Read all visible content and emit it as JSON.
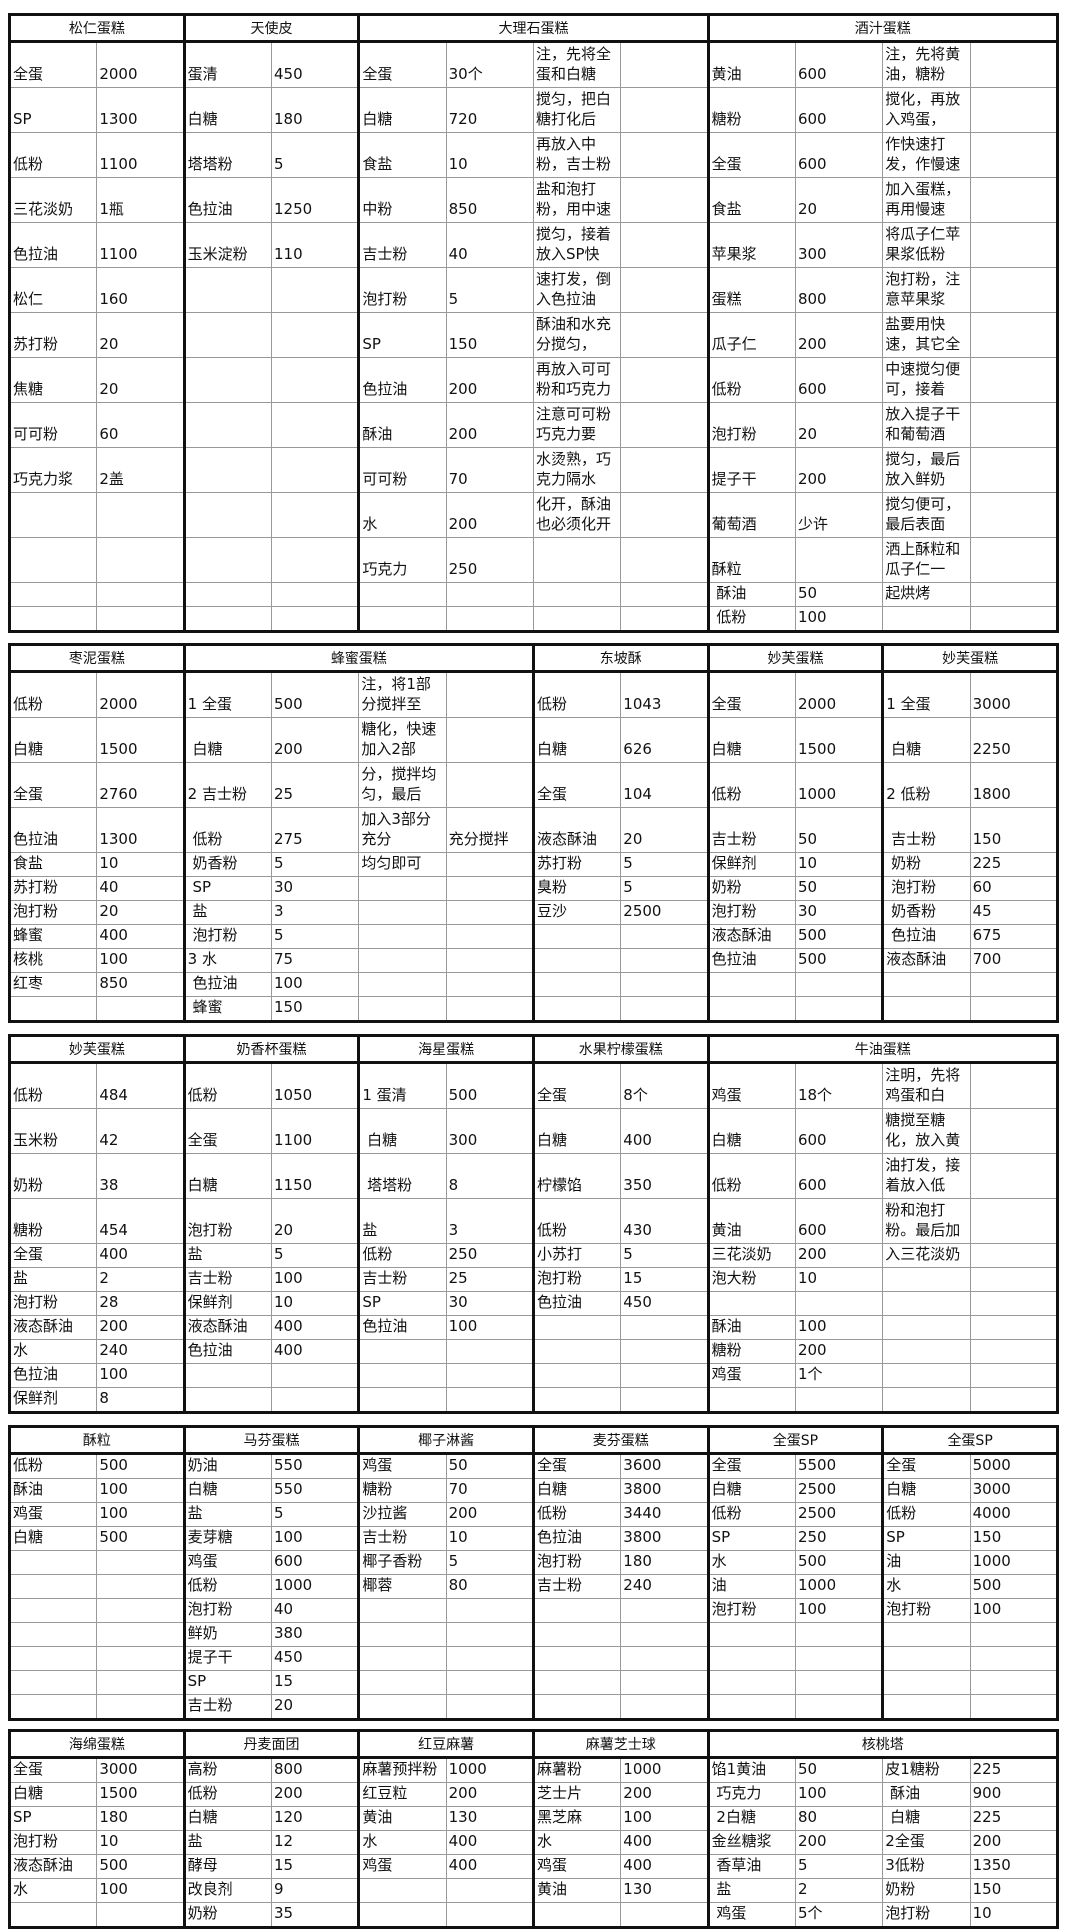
{
  "tables": [
    {
      "headers": [
        {
          "title": "松仁蛋糕",
          "span": 2
        },
        {
          "title": "天使皮",
          "span": 2
        },
        {
          "title": "大理石蛋糕",
          "span": 4
        },
        {
          "title": "酒汁蛋糕",
          "span": 4
        }
      ],
      "rows": [
        [
          "全蛋",
          "2000",
          "蛋清",
          "450",
          "全蛋",
          "30个",
          "注，先将全蛋和白糖",
          "",
          "黄油",
          "600",
          "注，先将黄油，糖粉",
          ""
        ],
        [
          "SP",
          "1300",
          "白糖",
          "180",
          "白糖",
          "720",
          "搅匀，把白糖打化后",
          "",
          "糖粉",
          "600",
          "搅化，再放入鸡蛋，",
          ""
        ],
        [
          "低粉",
          "1100",
          "塔塔粉",
          "5",
          "食盐",
          "10",
          "再放入中粉，吉士粉",
          "",
          "全蛋",
          "600",
          "作快速打发，作慢速",
          ""
        ],
        [
          "三花淡奶",
          "1瓶",
          "色拉油",
          "1250",
          "中粉",
          "850",
          "盐和泡打粉，用中速",
          "",
          "食盐",
          "20",
          "加入蛋糕，再用慢速",
          ""
        ],
        [
          "色拉油",
          "1100",
          "玉米淀粉",
          "110",
          "吉士粉",
          "40",
          "搅匀，接着放入SP快",
          "",
          "苹果浆",
          "300",
          "将瓜子仁苹果浆低粉",
          ""
        ],
        [
          "松仁",
          "160",
          "",
          "",
          "泡打粉",
          "5",
          "速打发，倒入色拉油",
          "",
          "蛋糕",
          "800",
          "泡打粉，注意苹果浆",
          ""
        ],
        [
          "苏打粉",
          "20",
          "",
          "",
          "SP",
          "150",
          "酥油和水充分搅匀，",
          "",
          "瓜子仁",
          "200",
          "盐要用快速，其它全",
          ""
        ],
        [
          "焦糖",
          "20",
          "",
          "",
          "色拉油",
          "200",
          "再放入可可粉和巧克力",
          "",
          "低粉",
          "600",
          "中速搅匀便可，接着",
          ""
        ],
        [
          "可可粉",
          "60",
          "",
          "",
          "酥油",
          "200",
          "注意可可粉巧克力要",
          "",
          "泡打粉",
          "20",
          "放入提子干和葡萄酒",
          ""
        ],
        [
          "巧克力浆",
          "2盖",
          "",
          "",
          "可可粉",
          "70",
          "水烫熟，巧克力隔水",
          "",
          "提子干",
          "200",
          "搅匀，最后放入鲜奶",
          ""
        ],
        [
          "",
          "",
          "",
          "",
          "水",
          "200",
          "化开，酥油也必须化开",
          "",
          "葡萄酒",
          "少许",
          "搅匀便可，最后表面",
          ""
        ],
        [
          "",
          "",
          "",
          "",
          "巧克力",
          "250",
          "",
          "",
          "酥粒",
          "",
          "洒上酥粒和瓜子仁一",
          ""
        ],
        [
          "",
          "",
          "",
          "",
          "",
          "",
          "",
          "",
          " 酥油",
          "50",
          "起烘烤",
          ""
        ],
        [
          "",
          "",
          "",
          "",
          "",
          "",
          "",
          "",
          " 低粉",
          "100",
          "",
          ""
        ]
      ]
    },
    {
      "headers": [
        {
          "title": "枣泥蛋糕",
          "span": 2
        },
        {
          "title": "蜂蜜蛋糕",
          "span": 4
        },
        {
          "title": "东坡酥",
          "span": 2
        },
        {
          "title": "妙芙蛋糕",
          "span": 2
        },
        {
          "title": "妙芙蛋糕",
          "span": 2
        }
      ],
      "rows": [
        [
          "低粉",
          "2000",
          "1 全蛋",
          "500",
          "注，将1部分搅拌至",
          "",
          "低粉",
          "1043",
          "全蛋",
          "2000",
          "1 全蛋",
          "3000"
        ],
        [
          "白糖",
          "1500",
          " 白糖",
          "200",
          "糖化，快速加入2部",
          "",
          "白糖",
          "626",
          "白糖",
          "1500",
          " 白糖",
          "2250"
        ],
        [
          "全蛋",
          "2760",
          "2 吉士粉",
          "25",
          "分，搅拌均匀，最后",
          "",
          "全蛋",
          "104",
          "低粉",
          "1000",
          "2 低粉",
          "1800"
        ],
        [
          "色拉油",
          "1300",
          " 低粉",
          "275",
          "加入3部分充分",
          "充分搅拌",
          "液态酥油",
          "20",
          "吉士粉",
          "50",
          " 吉士粉",
          "150"
        ],
        [
          "食盐",
          "10",
          " 奶香粉",
          "5",
          "均匀即可",
          "",
          "苏打粉",
          "5",
          "保鲜剂",
          "10",
          " 奶粉",
          "225"
        ],
        [
          "苏打粉",
          "40",
          " SP",
          "30",
          "",
          "",
          "臭粉",
          "5",
          "奶粉",
          "50",
          " 泡打粉",
          "60"
        ],
        [
          "泡打粉",
          "20",
          " 盐",
          "3",
          "",
          "",
          "豆沙",
          "2500",
          "泡打粉",
          "30",
          " 奶香粉",
          "45"
        ],
        [
          "蜂蜜",
          "400",
          " 泡打粉",
          "5",
          "",
          "",
          "",
          "",
          "液态酥油",
          "500",
          " 色拉油",
          "675"
        ],
        [
          "核桃",
          "100",
          "3 水",
          "75",
          "",
          "",
          "",
          "",
          "色拉油",
          "500",
          "液态酥油",
          "700"
        ],
        [
          "红枣",
          "850",
          " 色拉油",
          "100",
          "",
          "",
          "",
          "",
          "",
          "",
          "",
          ""
        ],
        [
          "",
          "",
          " 蜂蜜",
          "150",
          "",
          "",
          "",
          "",
          "",
          "",
          "",
          ""
        ]
      ]
    },
    {
      "headers": [
        {
          "title": "妙芙蛋糕",
          "span": 2
        },
        {
          "title": "奶香杯蛋糕",
          "span": 2
        },
        {
          "title": "海星蛋糕",
          "span": 2
        },
        {
          "title": "水果柠檬蛋糕",
          "span": 2
        },
        {
          "title": "牛油蛋糕",
          "span": 4
        }
      ],
      "rows": [
        [
          "低粉",
          "484",
          "低粉",
          "1050",
          "1 蛋清",
          "500",
          "全蛋",
          "8个",
          "鸡蛋",
          "18个",
          "注明，先将鸡蛋和白",
          ""
        ],
        [
          "玉米粉",
          "42",
          "全蛋",
          "1100",
          " 白糖",
          "300",
          "白糖",
          "400",
          "白糖",
          "600",
          "糖搅至糖化，放入黄",
          ""
        ],
        [
          "奶粉",
          "38",
          "白糖",
          "1150",
          " 塔塔粉",
          "8",
          "柠檬馅",
          "350",
          "低粉",
          "600",
          "油打发，接着放入低",
          ""
        ],
        [
          "糖粉",
          "454",
          "泡打粉",
          "20",
          "盐",
          "3",
          "低粉",
          "430",
          "黄油",
          "600",
          "粉和泡打粉。最后加",
          ""
        ],
        [
          "全蛋",
          "400",
          "盐",
          "5",
          "低粉",
          "250",
          "小苏打",
          "5",
          "三花淡奶",
          "200",
          "入三花淡奶",
          ""
        ],
        [
          "盐",
          "2",
          "吉士粉",
          "100",
          "吉士粉",
          "25",
          "泡打粉",
          "15",
          "泡大粉",
          "10",
          "",
          ""
        ],
        [
          "泡打粉",
          "28",
          "保鲜剂",
          "10",
          "SP",
          "30",
          "色拉油",
          "450",
          "",
          "",
          "",
          ""
        ],
        [
          "液态酥油",
          "200",
          "液态酥油",
          "400",
          "色拉油",
          "100",
          "",
          "",
          "酥油",
          "100",
          "",
          ""
        ],
        [
          "水",
          "240",
          "色拉油",
          "400",
          "",
          "",
          "",
          "",
          "糖粉",
          "200",
          "",
          ""
        ],
        [
          "色拉油",
          "100",
          "",
          "",
          "",
          "",
          "",
          "",
          "鸡蛋",
          "1个",
          "",
          ""
        ],
        [
          "保鲜剂",
          "8",
          "",
          "",
          "",
          "",
          "",
          "",
          "",
          "",
          "",
          ""
        ]
      ]
    },
    {
      "headers": [
        {
          "title": "酥粒",
          "span": 2
        },
        {
          "title": "马芬蛋糕",
          "span": 2
        },
        {
          "title": "椰子淋酱",
          "span": 2
        },
        {
          "title": "麦芬蛋糕",
          "span": 2
        },
        {
          "title": "全蛋SP",
          "span": 2
        },
        {
          "title": "全蛋SP",
          "span": 2
        }
      ],
      "rows": [
        [
          "低粉",
          "500",
          "奶油",
          "550",
          "鸡蛋",
          "50",
          "全蛋",
          "3600",
          "全蛋",
          "5500",
          "全蛋",
          "5000"
        ],
        [
          "酥油",
          "100",
          "白糖",
          "550",
          "糖粉",
          "70",
          "白糖",
          "3800",
          "白糖",
          "2500",
          "白糖",
          "3000"
        ],
        [
          "鸡蛋",
          "100",
          "盐",
          "5",
          "沙拉酱",
          "200",
          "低粉",
          "3440",
          "低粉",
          "2500",
          "低粉",
          "4000"
        ],
        [
          "白糖",
          "500",
          "麦芽糖",
          "100",
          "吉士粉",
          "10",
          "色拉油",
          "3800",
          "SP",
          "250",
          "SP",
          "150"
        ],
        [
          "",
          "",
          "鸡蛋",
          "600",
          "椰子香粉",
          "5",
          "泡打粉",
          "180",
          "水",
          "500",
          "油",
          "1000"
        ],
        [
          "",
          "",
          "低粉",
          "1000",
          "椰蓉",
          "80",
          "吉士粉",
          "240",
          "油",
          "1000",
          "水",
          "500"
        ],
        [
          "",
          "",
          "泡打粉",
          "40",
          "",
          "",
          "",
          "",
          "泡打粉",
          "100",
          "泡打粉",
          "100"
        ],
        [
          "",
          "",
          "鲜奶",
          "380",
          "",
          "",
          "",
          "",
          "",
          "",
          "",
          ""
        ],
        [
          "",
          "",
          "提子干",
          "450",
          "",
          "",
          "",
          "",
          "",
          "",
          "",
          ""
        ],
        [
          "",
          "",
          "SP",
          "15",
          "",
          "",
          "",
          "",
          "",
          "",
          "",
          ""
        ],
        [
          "",
          "",
          "吉士粉",
          "20",
          "",
          "",
          "",
          "",
          "",
          "",
          "",
          ""
        ]
      ]
    },
    {
      "headers": [
        {
          "title": "海绵蛋糕",
          "span": 2
        },
        {
          "title": "丹麦面团",
          "span": 2
        },
        {
          "title": "红豆麻薯",
          "span": 2
        },
        {
          "title": "麻薯芝士球",
          "span": 2
        },
        {
          "title": "核桃塔",
          "span": 4
        }
      ],
      "rows": [
        [
          "全蛋",
          "3000",
          "高粉",
          "800",
          "麻薯预拌粉",
          "1000",
          "麻薯粉",
          "1000",
          "馅1黄油",
          "50",
          "皮1糖粉",
          "225"
        ],
        [
          "白糖",
          "1500",
          "低粉",
          "200",
          "红豆粒",
          "200",
          "芝士片",
          "200",
          " 巧克力",
          "100",
          " 酥油",
          "900"
        ],
        [
          "SP",
          "180",
          "白糖",
          "120",
          "黄油",
          "130",
          "黑芝麻",
          "100",
          " 2白糖",
          "80",
          " 白糖",
          "225"
        ],
        [
          "泡打粉",
          "10",
          "盐",
          "12",
          "水",
          "400",
          "水",
          "400",
          "金丝糖浆",
          "200",
          "2全蛋",
          "200"
        ],
        [
          "液态酥油",
          "500",
          "酵母",
          "15",
          "鸡蛋",
          "400",
          "鸡蛋",
          "400",
          " 香草油",
          "5",
          "3低粉",
          "1350"
        ],
        [
          "水",
          "100",
          "改良剂",
          "9",
          "",
          "",
          "黄油",
          "130",
          " 盐",
          "2",
          "奶粉",
          "150"
        ],
        [
          "",
          "",
          "奶粉",
          "35",
          "",
          "",
          "",
          "",
          " 鸡蛋",
          "5个",
          "泡打粉",
          "10"
        ]
      ]
    }
  ]
}
